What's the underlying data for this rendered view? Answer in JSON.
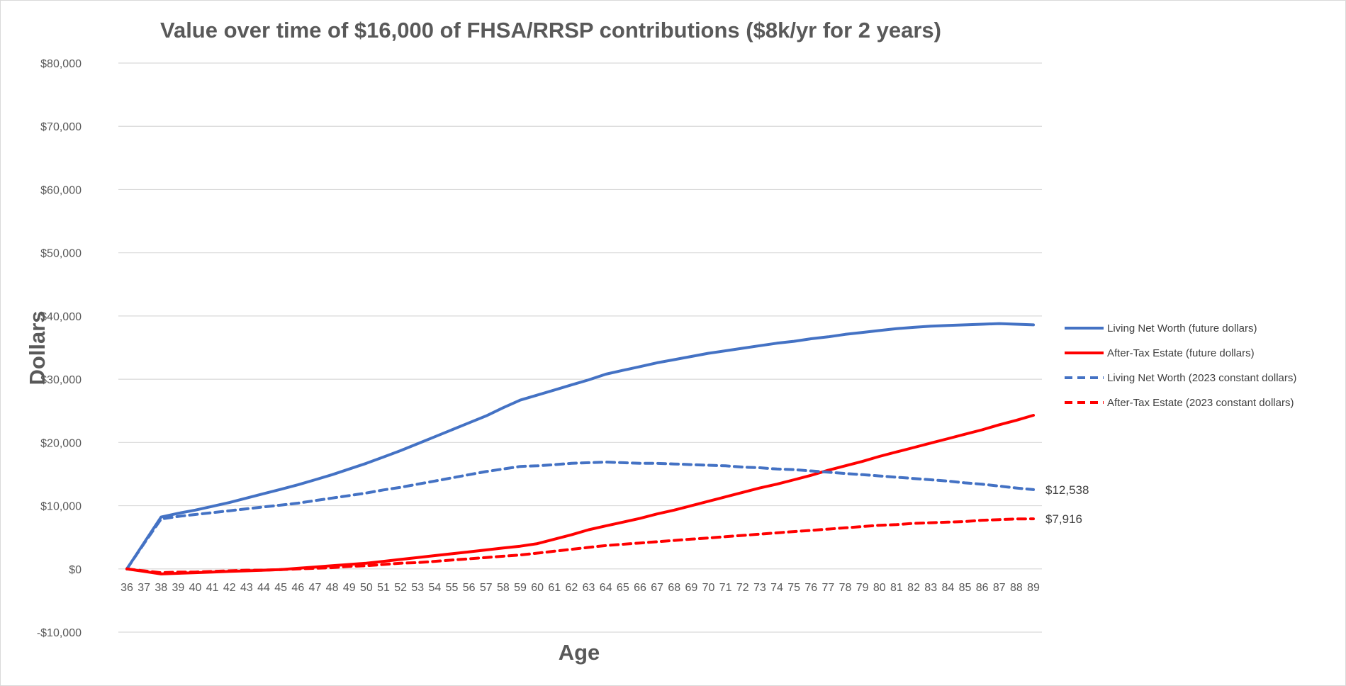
{
  "chart_data": {
    "type": "line",
    "title": "Value over time of $16,000 of FHSA/RRSP contributions  ($8k/yr for 2 years)",
    "xlabel": "Age",
    "ylabel": "Dollars",
    "ylim": [
      -10000,
      80000
    ],
    "y_ticks": [
      -10000,
      0,
      10000,
      20000,
      30000,
      40000,
      50000,
      60000,
      70000,
      80000
    ],
    "y_tick_labels": [
      "-$10,000",
      "$0",
      "$10,000",
      "$20,000",
      "$30,000",
      "$40,000",
      "$50,000",
      "$60,000",
      "$70,000",
      "$80,000"
    ],
    "grid": true,
    "legend_position": "right",
    "categories": [
      "36",
      "37",
      "38",
      "39",
      "40",
      "41",
      "42",
      "43",
      "44",
      "45",
      "46",
      "47",
      "48",
      "49",
      "50",
      "51",
      "52",
      "53",
      "54",
      "55",
      "56",
      "57",
      "58",
      "59",
      "60",
      "61",
      "62",
      "63",
      "64",
      "65",
      "66",
      "67",
      "68",
      "69",
      "70",
      "71",
      "72",
      "73",
      "74",
      "75",
      "76",
      "77",
      "78",
      "79",
      "80",
      "81",
      "82",
      "83",
      "84",
      "85",
      "86",
      "87",
      "88",
      "89"
    ],
    "series": [
      {
        "name": "Living Net Worth (future dollars)",
        "color": "#4472c4",
        "dash": "solid",
        "values": [
          0,
          4100,
          8200,
          8800,
          9300,
          9900,
          10500,
          11200,
          11900,
          12600,
          13300,
          14100,
          14900,
          15800,
          16700,
          17700,
          18700,
          19800,
          20900,
          22000,
          23100,
          24200,
          25500,
          26700,
          27500,
          28300,
          29100,
          29900,
          30800,
          31400,
          32000,
          32600,
          33100,
          33600,
          34100,
          34500,
          34900,
          35300,
          35700,
          36000,
          36400,
          36700,
          37100,
          37400,
          37700,
          38000,
          38200,
          38400,
          38500,
          38600,
          38700,
          38800,
          38700,
          38600
        ]
      },
      {
        "name": "After-Tax Estate (future dollars)",
        "color": "#ff0000",
        "dash": "solid",
        "values": [
          0,
          -400,
          -800,
          -700,
          -600,
          -500,
          -400,
          -300,
          -200,
          -100,
          100,
          300,
          500,
          700,
          900,
          1200,
          1500,
          1800,
          2100,
          2400,
          2700,
          3000,
          3300,
          3600,
          4000,
          4700,
          5400,
          6200,
          6800,
          7400,
          8000,
          8700,
          9300,
          10000,
          10700,
          11400,
          12100,
          12800,
          13400,
          14100,
          14800,
          15600,
          16300,
          17000,
          17800,
          18500,
          19200,
          19900,
          20600,
          21300,
          22000,
          22800,
          23500,
          24300
        ]
      },
      {
        "name": "Living Net Worth (2023 constant dollars)",
        "color": "#4472c4",
        "dash": "dashed",
        "values": [
          0,
          4000,
          7900,
          8300,
          8600,
          8900,
          9200,
          9500,
          9800,
          10100,
          10400,
          10800,
          11200,
          11600,
          12000,
          12500,
          12900,
          13400,
          13900,
          14400,
          14900,
          15400,
          15800,
          16200,
          16300,
          16500,
          16700,
          16800,
          16900,
          16800,
          16700,
          16700,
          16600,
          16500,
          16400,
          16300,
          16100,
          16000,
          15800,
          15700,
          15500,
          15300,
          15100,
          14900,
          14700,
          14500,
          14300,
          14100,
          13900,
          13600,
          13400,
          13100,
          12800,
          12538
        ]
      },
      {
        "name": "After-Tax Estate (2023 constant dollars)",
        "color": "#ff0000",
        "dash": "dashed",
        "values": [
          0,
          -300,
          -600,
          -500,
          -500,
          -400,
          -300,
          -200,
          -200,
          -100,
          0,
          100,
          200,
          400,
          500,
          700,
          900,
          1000,
          1200,
          1400,
          1600,
          1800,
          2000,
          2200,
          2500,
          2800,
          3100,
          3400,
          3700,
          3900,
          4100,
          4300,
          4500,
          4700,
          4900,
          5100,
          5300,
          5500,
          5700,
          5900,
          6100,
          6300,
          6500,
          6700,
          6900,
          7000,
          7200,
          7300,
          7400,
          7500,
          7700,
          7800,
          7900,
          7916
        ]
      }
    ],
    "end_labels": [
      {
        "series": "Living Net Worth (2023 constant dollars)",
        "text": "$12,538",
        "value": 12538
      },
      {
        "series": "After-Tax Estate (2023 constant dollars)",
        "text": "$7,916",
        "value": 7916
      }
    ]
  }
}
